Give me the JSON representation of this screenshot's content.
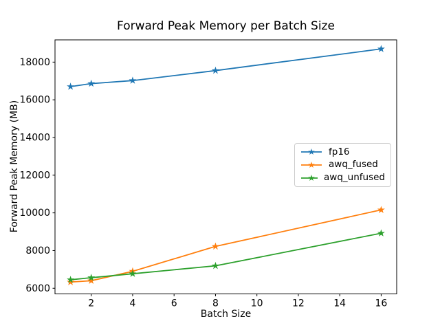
{
  "chart_data": {
    "type": "line",
    "title": "Forward Peak Memory per Batch Size",
    "xlabel": "Batch Size",
    "ylabel": "Forward Peak Memory (MB)",
    "x": [
      1,
      2,
      4,
      8,
      16
    ],
    "series": [
      {
        "name": "fp16",
        "color": "#1f77b4",
        "values": [
          16700,
          16860,
          17020,
          17550,
          18700
        ]
      },
      {
        "name": "awq_fused",
        "color": "#ff7f0e",
        "values": [
          6330,
          6400,
          6900,
          8220,
          10160
        ]
      },
      {
        "name": "awq_unfused",
        "color": "#2ca02c",
        "values": [
          6450,
          6560,
          6770,
          7190,
          8920
        ]
      }
    ],
    "marker": "star",
    "xticks": [
      2,
      4,
      6,
      8,
      10,
      12,
      14,
      16
    ],
    "yticks": [
      6000,
      8000,
      10000,
      12000,
      14000,
      16000,
      18000
    ],
    "xlim": [
      0.25,
      16.75
    ],
    "ylim": [
      5700,
      19180
    ],
    "grid": false,
    "legend_position": "center right",
    "axis_color": "#000000",
    "background_color": "#ffffff"
  }
}
